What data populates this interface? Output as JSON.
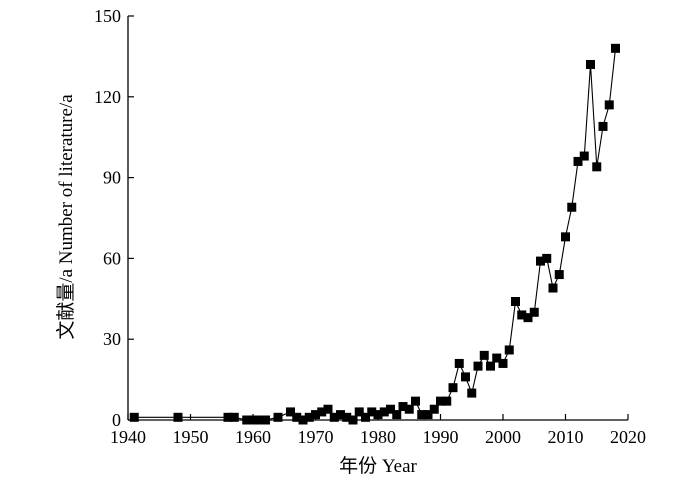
{
  "chart_data": {
    "type": "line",
    "title": "",
    "xlabel": "年份 Year",
    "ylabel": "文献量/a  Number of literature/a",
    "xlim": [
      1940,
      2020
    ],
    "ylim": [
      0,
      150
    ],
    "xticks": [
      1940,
      1950,
      1960,
      1970,
      1980,
      1990,
      2000,
      2010,
      2020
    ],
    "yticks": [
      0,
      30,
      60,
      90,
      120,
      150
    ],
    "grid": false,
    "legend": "none",
    "marker": "square",
    "colors": {
      "line": "#000000",
      "marker": "#000000",
      "axis": "#000000"
    },
    "series": [
      {
        "x": [
          1941,
          1948,
          1956,
          1957,
          1959,
          1960,
          1961,
          1962,
          1964,
          1966,
          1967,
          1968,
          1969,
          1970,
          1971,
          1972,
          1973,
          1974,
          1975,
          1976,
          1977,
          1978,
          1979,
          1980,
          1981,
          1982,
          1983,
          1984,
          1985,
          1986,
          1987,
          1988,
          1989,
          1990,
          1991,
          1992,
          1993,
          1994,
          1995,
          1996,
          1997,
          1998,
          1999,
          2000,
          2001,
          2002,
          2003,
          2004,
          2005,
          2006,
          2007,
          2008,
          2009,
          2010,
          2011,
          2012,
          2013,
          2014,
          2015,
          2016,
          2017,
          2018
        ],
        "y": [
          1,
          1,
          1,
          1,
          0,
          0,
          0,
          0,
          1,
          3,
          1,
          0,
          1,
          2,
          3,
          4,
          1,
          2,
          1,
          0,
          3,
          1,
          3,
          2,
          3,
          4,
          2,
          5,
          4,
          7,
          2,
          2,
          4,
          7,
          7,
          12,
          21,
          16,
          10,
          20,
          24,
          20,
          23,
          21,
          26,
          44,
          39,
          38,
          40,
          59,
          60,
          49,
          54,
          68,
          79,
          96,
          98,
          132,
          94,
          109,
          117,
          138
        ]
      }
    ]
  }
}
